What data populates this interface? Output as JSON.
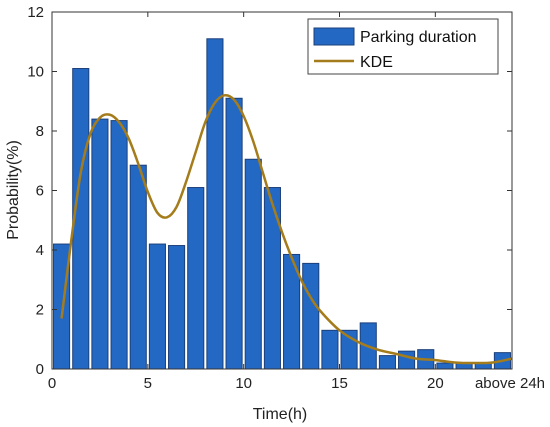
{
  "chart_data": {
    "type": "bar",
    "xlabel": "Time(h)",
    "ylabel": "Probability(%)",
    "xlim": [
      0,
      24
    ],
    "ylim": [
      0,
      12
    ],
    "x_ticks": [
      0,
      5,
      10,
      15,
      20
    ],
    "x_tick_labels": [
      "0",
      "5",
      "10",
      "15",
      "20"
    ],
    "x_extra_label": "above 24h",
    "y_ticks": [
      0,
      2,
      4,
      6,
      8,
      10,
      12
    ],
    "y_tick_labels": [
      "0",
      "2",
      "4",
      "6",
      "8",
      "10",
      "12"
    ],
    "grid": false,
    "legend_position": "top-right",
    "colors": {
      "bar": "#2369c4",
      "bar_edge": "#1b3f7a",
      "kde": "#a57c1b",
      "axis": "#333333"
    },
    "series": [
      {
        "name": "Parking duration",
        "type": "bar",
        "x": [
          1,
          2,
          3,
          4,
          5,
          6,
          7,
          8,
          9,
          10,
          11,
          12,
          13,
          14,
          15,
          16,
          17,
          18,
          19,
          20,
          21,
          22,
          23,
          24
        ],
        "values": [
          4.2,
          10.1,
          8.4,
          8.35,
          6.85,
          4.2,
          4.15,
          6.1,
          11.1,
          9.1,
          7.05,
          6.1,
          3.85,
          3.55,
          1.3,
          1.3,
          1.55,
          0.45,
          0.6,
          0.65,
          0.2,
          0.2,
          0.2,
          0.55
        ]
      },
      {
        "name": "KDE",
        "type": "line",
        "x": [
          0.5,
          1,
          1.5,
          2,
          2.5,
          3,
          3.5,
          4,
          4.5,
          5,
          5.5,
          6,
          6.5,
          7,
          7.5,
          8,
          8.5,
          9,
          9.5,
          10,
          10.5,
          11,
          11.5,
          12,
          12.5,
          13,
          13.5,
          14,
          15,
          16,
          17,
          18,
          19,
          20,
          21,
          22,
          23,
          24
        ],
        "values": [
          1.7,
          4.3,
          6.6,
          7.9,
          8.45,
          8.55,
          8.3,
          7.75,
          6.9,
          5.95,
          5.25,
          5.1,
          5.45,
          6.3,
          7.3,
          8.3,
          8.95,
          9.2,
          9.05,
          8.5,
          7.65,
          6.6,
          5.55,
          4.6,
          3.75,
          3.0,
          2.4,
          1.95,
          1.3,
          0.9,
          0.65,
          0.5,
          0.35,
          0.3,
          0.22,
          0.2,
          0.22,
          0.35
        ]
      }
    ]
  }
}
